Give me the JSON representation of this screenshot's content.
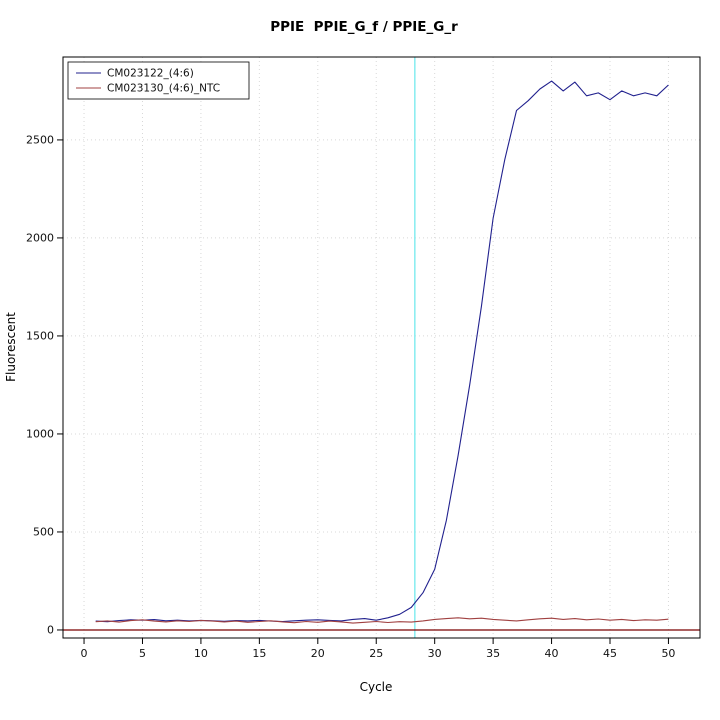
{
  "chart_data": {
    "type": "line",
    "title": "PPIE  PPIE_G_f / PPIE_G_r",
    "xlabel": "Cycle",
    "ylabel": "Fluorescent",
    "x_range": [
      -1.8,
      52.7
    ],
    "y_range": [
      -41,
      2923
    ],
    "xticks": [
      0,
      5,
      10,
      15,
      20,
      25,
      30,
      35,
      40,
      45,
      50
    ],
    "yticks": [
      0,
      500,
      1000,
      1500,
      2000,
      2500
    ],
    "grid": "dotted",
    "grid_color": "#d8d8d8",
    "legend_position": "top-left",
    "threshold_line": {
      "x": 28.3,
      "color": "#8deef1"
    },
    "baseline_line": {
      "y": 0,
      "color": "#7a0000"
    },
    "series": [
      {
        "name": "CM023122_(4:6)",
        "color": "#21218e",
        "x": [
          1,
          2,
          3,
          4,
          5,
          6,
          7,
          8,
          9,
          10,
          11,
          12,
          13,
          14,
          15,
          16,
          17,
          18,
          19,
          20,
          21,
          22,
          23,
          24,
          25,
          26,
          27,
          28,
          29,
          30,
          31,
          32,
          33,
          34,
          35,
          36,
          37,
          38,
          39,
          40,
          41,
          42,
          43,
          44,
          45,
          46,
          47,
          48,
          49,
          50
        ],
        "values": [
          45,
          42,
          48,
          52,
          50,
          53,
          47,
          50,
          46,
          49,
          47,
          44,
          48,
          46,
          49,
          45,
          43,
          47,
          50,
          52,
          49,
          46,
          54,
          58,
          50,
          62,
          80,
          115,
          190,
          310,
          560,
          890,
          1250,
          1650,
          2100,
          2400,
          2650,
          2700,
          2760,
          2800,
          2750,
          2795,
          2725,
          2740,
          2705,
          2750,
          2725,
          2740,
          2725,
          2780
        ]
      },
      {
        "name": "CM023130_(4:6)_NTC",
        "color": "#a04040",
        "x": [
          1,
          2,
          3,
          4,
          5,
          6,
          7,
          8,
          9,
          10,
          11,
          12,
          13,
          14,
          15,
          16,
          17,
          18,
          19,
          20,
          21,
          22,
          23,
          24,
          25,
          26,
          27,
          28,
          29,
          30,
          31,
          32,
          33,
          34,
          35,
          36,
          37,
          38,
          39,
          40,
          41,
          42,
          43,
          44,
          45,
          46,
          47,
          48,
          49,
          50
        ],
        "values": [
          42,
          46,
          40,
          48,
          52,
          45,
          41,
          47,
          43,
          49,
          45,
          41,
          45,
          39,
          43,
          47,
          41,
          37,
          43,
          39,
          45,
          41,
          35,
          39,
          43,
          38,
          42,
          40,
          46,
          54,
          58,
          62,
          57,
          60,
          54,
          50,
          46,
          52,
          57,
          60,
          54,
          58,
          52,
          56,
          50,
          54,
          48,
          52,
          50,
          55
        ]
      }
    ]
  }
}
